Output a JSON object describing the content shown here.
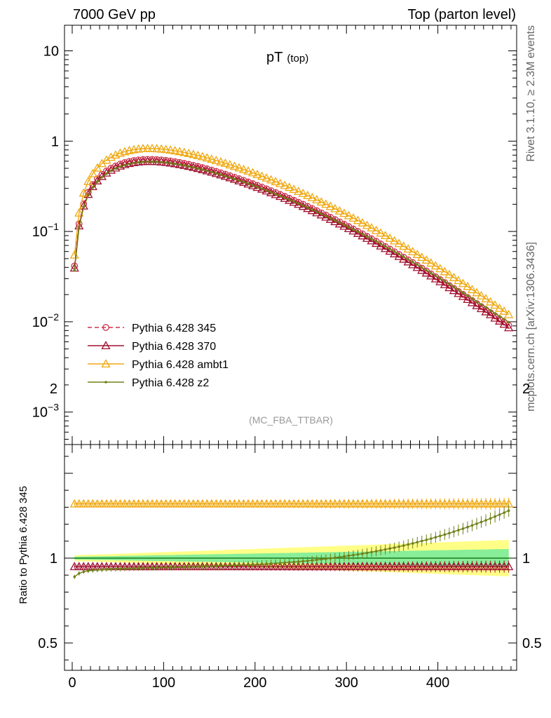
{
  "header": {
    "left": "7000 GeV pp",
    "right": "Top (parton level)"
  },
  "side_labels": {
    "rivet": "Rivet 3.1.10, ≥ 2.3M events",
    "source": "mcplots.cern.ch [arXiv:1306.3436]"
  },
  "plot_title": {
    "main": "pT",
    "sub": "(top)"
  },
  "analysis_tag": "(MC_FBA_TTBAR)",
  "colors": {
    "p345": "#d0304a",
    "p370": "#a01030",
    "ambt1": "#f0a810",
    "z2": "#708018",
    "ref_line": "#1a7a1a",
    "band_outer": "#ffff88",
    "band_inner": "#88ee99"
  },
  "chart_data": [
    {
      "type": "line",
      "panel": "main",
      "title": "pT (top)",
      "xlabel": "",
      "ylabel": "",
      "xlim": [
        -10,
        490
      ],
      "ylim": [
        0.0004,
        20
      ],
      "yscale": "log",
      "y_ticks": [
        {
          "value": 10,
          "label": "10"
        },
        {
          "value": 1,
          "label": "1"
        },
        {
          "value": 0.1,
          "label": "10",
          "sup": "−1"
        },
        {
          "value": 0.01,
          "label": "10",
          "sup": "−2"
        },
        {
          "value": 0.001,
          "label": "10",
          "sup": "−3"
        }
      ],
      "legend_position": "middle-left",
      "x": [
        2.5,
        7.5,
        12.5,
        17.5,
        22.5,
        27.5,
        32.5,
        37.5,
        42.5,
        47.5,
        52.5,
        57.5,
        62.5,
        67.5,
        72.5,
        77.5,
        82.5,
        87.5,
        92.5,
        97.5,
        102.5,
        107.5,
        112.5,
        117.5,
        122.5,
        127.5,
        132.5,
        137.5,
        142.5,
        147.5,
        152.5,
        157.5,
        162.5,
        167.5,
        172.5,
        177.5,
        182.5,
        187.5,
        192.5,
        197.5,
        202.5,
        207.5,
        212.5,
        217.5,
        222.5,
        227.5,
        232.5,
        237.5,
        242.5,
        247.5,
        252.5,
        257.5,
        262.5,
        267.5,
        272.5,
        277.5,
        282.5,
        287.5,
        292.5,
        297.5,
        302.5,
        307.5,
        312.5,
        317.5,
        322.5,
        327.5,
        332.5,
        337.5,
        342.5,
        347.5,
        352.5,
        357.5,
        362.5,
        367.5,
        372.5,
        377.5,
        382.5,
        387.5,
        392.5,
        397.5,
        402.5,
        407.5,
        412.5,
        417.5,
        422.5,
        427.5,
        432.5,
        437.5,
        442.5,
        447.5,
        452.5,
        457.5,
        462.5,
        467.5,
        472.5,
        477.5
      ],
      "series": [
        {
          "name": "Pythia 6.428 345",
          "color_key": "p345",
          "marker": "circle",
          "dash": true,
          "values": [
            0.0415,
            0.1214,
            0.2018,
            0.2708,
            0.3305,
            0.3825,
            0.4279,
            0.4676,
            0.5022,
            0.5322,
            0.5578,
            0.5793,
            0.5966,
            0.61,
            0.6196,
            0.6256,
            0.6282,
            0.6279,
            0.6248,
            0.6195,
            0.6121,
            0.603,
            0.5924,
            0.5806,
            0.5677,
            0.554,
            0.5397,
            0.5248,
            0.5095,
            0.4939,
            0.4781,
            0.4622,
            0.4463,
            0.4304,
            0.4146,
            0.399,
            0.3835,
            0.3683,
            0.3533,
            0.3385,
            0.3241,
            0.31,
            0.2963,
            0.2829,
            0.2698,
            0.2572,
            0.2449,
            0.233,
            0.2215,
            0.2104,
            0.1997,
            0.1893,
            0.1794,
            0.1698,
            0.1607,
            0.1519,
            0.1435,
            0.1354,
            0.1277,
            0.1203,
            0.1133,
            0.1066,
            0.1003,
            0.0942,
            0.0884,
            0.083,
            0.0778,
            0.0728,
            0.0682,
            0.0638,
            0.0596,
            0.0557,
            0.052,
            0.0485,
            0.0452,
            0.0421,
            0.0392,
            0.0365,
            0.0339,
            0.0315,
            0.0293,
            0.0272,
            0.0252,
            0.0234,
            0.0217,
            0.0201,
            0.0186,
            0.0172,
            0.0159,
            0.0147,
            0.0136,
            0.0126,
            0.0116,
            0.0107,
            0.0099,
            0.0091
          ]
        },
        {
          "name": "Pythia 6.428 370",
          "color_key": "p370",
          "marker": "triangle",
          "dash": false,
          "values": [
            0.0394,
            0.1153,
            0.1917,
            0.2573,
            0.314,
            0.3634,
            0.4065,
            0.4442,
            0.4771,
            0.5056,
            0.5299,
            0.5503,
            0.5668,
            0.5795,
            0.5886,
            0.5943,
            0.5968,
            0.5965,
            0.5936,
            0.5885,
            0.5815,
            0.5728,
            0.5628,
            0.5516,
            0.5393,
            0.5263,
            0.5127,
            0.4986,
            0.484,
            0.4692,
            0.4542,
            0.4391,
            0.424,
            0.4089,
            0.3939,
            0.3791,
            0.3643,
            0.3499,
            0.3356,
            0.3216,
            0.3079,
            0.2945,
            0.2815,
            0.2688,
            0.2563,
            0.2443,
            0.2327,
            0.2214,
            0.2104,
            0.1999,
            0.1897,
            0.1798,
            0.1704,
            0.1613,
            0.1527,
            0.1443,
            0.1363,
            0.1286,
            0.1213,
            0.1143,
            0.1076,
            0.1013,
            0.0953,
            0.0895,
            0.084,
            0.0789,
            0.0739,
            0.0692,
            0.0648,
            0.0606,
            0.0566,
            0.0529,
            0.0494,
            0.0461,
            0.0429,
            0.04,
            0.0372,
            0.0347,
            0.0322,
            0.0299,
            0.0278,
            0.0258,
            0.0239,
            0.0222,
            0.0206,
            0.0191,
            0.0177,
            0.0163,
            0.0151,
            0.014,
            0.0129,
            0.012,
            0.011,
            0.0102,
            0.0094,
            0.0086
          ]
        },
        {
          "name": "Pythia 6.428 ambt1",
          "color_key": "ambt1",
          "marker": "triangle-open",
          "dash": false,
          "values": [
            0.0548,
            0.1602,
            0.2664,
            0.3575,
            0.4363,
            0.5049,
            0.5648,
            0.6172,
            0.6629,
            0.7025,
            0.7363,
            0.7647,
            0.7875,
            0.8052,
            0.8179,
            0.8258,
            0.8292,
            0.8288,
            0.8247,
            0.8177,
            0.808,
            0.796,
            0.782,
            0.7664,
            0.7494,
            0.7313,
            0.7124,
            0.6927,
            0.6725,
            0.652,
            0.6311,
            0.6101,
            0.5891,
            0.5681,
            0.5473,
            0.5267,
            0.5062,
            0.4862,
            0.4664,
            0.4468,
            0.4278,
            0.4092,
            0.3911,
            0.3734,
            0.3561,
            0.3395,
            0.3233,
            0.3076,
            0.2924,
            0.2777,
            0.2636,
            0.2499,
            0.2368,
            0.2241,
            0.2121,
            0.2005,
            0.1894,
            0.1787,
            0.1686,
            0.1588,
            0.1496,
            0.1407,
            0.1324,
            0.1243,
            0.1167,
            0.1096,
            0.1027,
            0.0961,
            0.09,
            0.0842,
            0.0787,
            0.0735,
            0.0686,
            0.064,
            0.0597,
            0.0556,
            0.0517,
            0.0482,
            0.0447,
            0.0416,
            0.0387,
            0.0359,
            0.0333,
            0.0309,
            0.0286,
            0.0265,
            0.0246,
            0.0227,
            0.021,
            0.0194,
            0.018,
            0.0166,
            0.0153,
            0.0141,
            0.0131,
            0.012
          ]
        },
        {
          "name": "Pythia 6.428 z2",
          "color_key": "z2",
          "marker": "dot",
          "dash": false,
          "values": [
            0.037,
            0.1105,
            0.1856,
            0.2505,
            0.3067,
            0.3559,
            0.3988,
            0.4366,
            0.4695,
            0.4982,
            0.5226,
            0.5436,
            0.5605,
            0.5736,
            0.5832,
            0.5893,
            0.5922,
            0.5924,
            0.5899,
            0.5852,
            0.5786,
            0.5704,
            0.5609,
            0.5501,
            0.5383,
            0.5257,
            0.5125,
            0.4988,
            0.4845,
            0.4701,
            0.4553,
            0.4405,
            0.4256,
            0.4107,
            0.3959,
            0.3812,
            0.3667,
            0.3524,
            0.3381,
            0.3243,
            0.3107,
            0.2974,
            0.2845,
            0.2718,
            0.2595,
            0.2476,
            0.236,
            0.2248,
            0.2139,
            0.2034,
            0.1933,
            0.1835,
            0.1742,
            0.1651,
            0.1565,
            0.1481,
            0.1402,
            0.1325,
            0.1252,
            0.1182,
            0.1115,
            0.1051,
            0.0991,
            0.0933,
            0.0877,
            0.0825,
            0.0775,
            0.0727,
            0.0682,
            0.064,
            0.0599,
            0.0561,
            0.0525,
            0.0491,
            0.0459,
            0.0429,
            0.04,
            0.0373,
            0.0348,
            0.0324,
            0.0302,
            0.0281,
            0.0262,
            0.0243,
            0.0226,
            0.021,
            0.0195,
            0.0181,
            0.0168,
            0.0156,
            0.0145,
            0.0134,
            0.0124,
            0.0115,
            0.0107,
            0.0099
          ]
        }
      ]
    },
    {
      "type": "line",
      "panel": "ratio",
      "title": "",
      "xlabel": "",
      "ylabel": "Ratio to Pythia 6.428 345",
      "xlim": [
        -10,
        490
      ],
      "ylim": [
        0.3,
        2.3
      ],
      "x_ticks": [
        0,
        100,
        200,
        300,
        400
      ],
      "y_ticks": [
        {
          "value": 2,
          "label": "2"
        },
        {
          "value": 1,
          "label": "1"
        },
        {
          "value": 0.5,
          "label": "0.5"
        }
      ],
      "reference": 1.0,
      "series": [
        {
          "name": "Pythia 6.428 370",
          "color_key": "p370",
          "marker": "triangle",
          "values": [
            0.95,
            0.95,
            0.95,
            0.95,
            0.95,
            0.95,
            0.95,
            0.95,
            0.95,
            0.95,
            0.95,
            0.95,
            0.95,
            0.95,
            0.95,
            0.95,
            0.95,
            0.95,
            0.95,
            0.95,
            0.95,
            0.95,
            0.95,
            0.95,
            0.95,
            0.95,
            0.95,
            0.95,
            0.95,
            0.95,
            0.95,
            0.95,
            0.95,
            0.95,
            0.95,
            0.95,
            0.95,
            0.95,
            0.95,
            0.95,
            0.95,
            0.95,
            0.95,
            0.95,
            0.95,
            0.95,
            0.95,
            0.95,
            0.95,
            0.95,
            0.95,
            0.95,
            0.95,
            0.95,
            0.95,
            0.95,
            0.95,
            0.95,
            0.95,
            0.95,
            0.95,
            0.95,
            0.95,
            0.95,
            0.95,
            0.95,
            0.95,
            0.95,
            0.95,
            0.95,
            0.95,
            0.95,
            0.95,
            0.95,
            0.95,
            0.95,
            0.95,
            0.95,
            0.95,
            0.95,
            0.95,
            0.95,
            0.95,
            0.95,
            0.95,
            0.95,
            0.95,
            0.95,
            0.95,
            0.95,
            0.95,
            0.95,
            0.95,
            0.95,
            0.95,
            0.95
          ]
        },
        {
          "name": "Pythia 6.428 ambt1",
          "color_key": "ambt1",
          "marker": "triangle-open",
          "values": [
            1.32,
            1.32,
            1.32,
            1.32,
            1.32,
            1.32,
            1.32,
            1.32,
            1.32,
            1.32,
            1.32,
            1.32,
            1.32,
            1.32,
            1.32,
            1.32,
            1.32,
            1.32,
            1.32,
            1.32,
            1.32,
            1.32,
            1.32,
            1.32,
            1.32,
            1.32,
            1.32,
            1.32,
            1.32,
            1.32,
            1.32,
            1.32,
            1.32,
            1.32,
            1.32,
            1.32,
            1.32,
            1.32,
            1.32,
            1.32,
            1.32,
            1.32,
            1.32,
            1.32,
            1.32,
            1.32,
            1.32,
            1.32,
            1.32,
            1.32,
            1.32,
            1.32,
            1.32,
            1.32,
            1.32,
            1.32,
            1.32,
            1.32,
            1.32,
            1.32,
            1.32,
            1.32,
            1.32,
            1.32,
            1.32,
            1.32,
            1.32,
            1.32,
            1.32,
            1.32,
            1.32,
            1.32,
            1.32,
            1.32,
            1.32,
            1.32,
            1.32,
            1.32,
            1.32,
            1.32,
            1.32,
            1.32,
            1.32,
            1.32,
            1.32,
            1.32,
            1.32,
            1.32,
            1.32,
            1.32,
            1.32,
            1.32,
            1.32,
            1.32,
            1.32,
            1.32
          ]
        },
        {
          "name": "Pythia 6.428 z2",
          "color_key": "z2",
          "marker": "dot",
          "values": [
            0.89,
            0.91,
            0.92,
            0.925,
            0.928,
            0.93,
            0.932,
            0.934,
            0.935,
            0.936,
            0.937,
            0.938,
            0.939,
            0.94,
            0.941,
            0.942,
            0.943,
            0.943,
            0.944,
            0.945,
            0.945,
            0.946,
            0.947,
            0.947,
            0.948,
            0.949,
            0.95,
            0.95,
            0.951,
            0.952,
            0.953,
            0.954,
            0.955,
            0.956,
            0.957,
            0.958,
            0.959,
            0.96,
            0.961,
            0.962,
            0.963,
            0.965,
            0.966,
            0.968,
            0.969,
            0.971,
            0.973,
            0.975,
            0.977,
            0.979,
            0.982,
            0.984,
            0.987,
            0.99,
            0.993,
            0.996,
            0.999,
            1.003,
            1.006,
            1.01,
            1.014,
            1.018,
            1.022,
            1.026,
            1.031,
            1.036,
            1.041,
            1.046,
            1.051,
            1.057,
            1.062,
            1.068,
            1.074,
            1.081,
            1.087,
            1.094,
            1.101,
            1.108,
            1.115,
            1.123,
            1.131,
            1.139,
            1.147,
            1.156,
            1.165,
            1.174,
            1.183,
            1.193,
            1.203,
            1.213,
            1.223,
            1.234,
            1.245,
            1.256,
            1.268,
            1.28
          ]
        }
      ]
    }
  ]
}
